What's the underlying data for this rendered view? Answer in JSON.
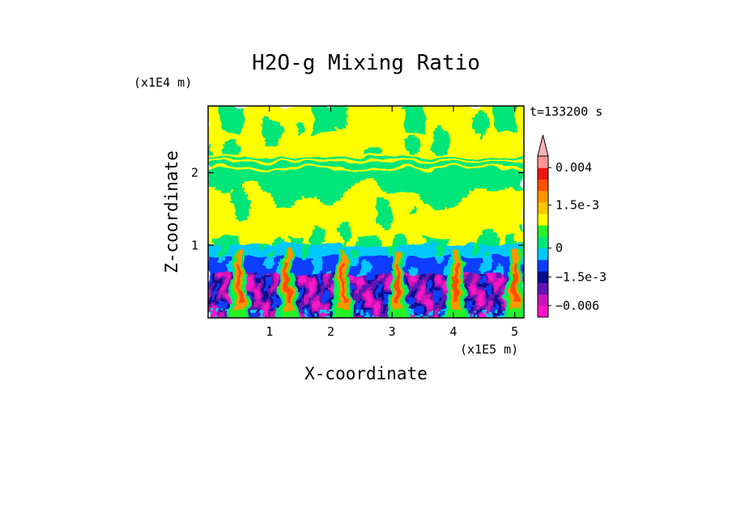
{
  "chart_data": {
    "type": "heatmap",
    "title": "H2O-g Mixing Ratio",
    "xlabel": "X-coordinate",
    "ylabel": "Z-coordinate",
    "x_unit": "(x1E5 m)",
    "y_unit": "(x1E4 m)",
    "time_label": "t=133200 s",
    "xlim": [
      0,
      5.15
    ],
    "ylim": [
      0,
      2.92
    ],
    "x_ticks": [
      1,
      2,
      3,
      4,
      5
    ],
    "x_tick_labels": [
      "1",
      "2",
      "3",
      "4",
      "5"
    ],
    "y_ticks": [
      1,
      2
    ],
    "y_tick_labels": [
      "1",
      "2"
    ],
    "colorbar": {
      "colors": [
        "#ff14c8",
        "#c814b4",
        "#6414b4",
        "#0a0a8c",
        "#0a3cff",
        "#00c8ff",
        "#00e678",
        "#28f028",
        "#ffff00",
        "#ffc800",
        "#ff9600",
        "#ff5000",
        "#f01414",
        "#ff9696",
        "#ffb4b4"
      ],
      "bounds": [
        -0.009,
        -0.006,
        -0.003,
        -0.0018,
        -0.0012,
        -0.0006,
        0,
        0.0004,
        0.0008,
        0.0012,
        0.0016,
        0.002,
        0.0028,
        0.004,
        0.005
      ],
      "tick_values": [
        0.004,
        0.0015,
        0,
        -0.0015,
        -0.006
      ],
      "tick_labels": [
        "0.004",
        "1.5e-3",
        "0",
        "−1.5e-3",
        "−0.006"
      ]
    },
    "field_summary": {
      "layers": [
        {
          "z_range": [
            2.25,
            2.92
          ],
          "level": 0.0004,
          "note": "upper yellow layer with green patches"
        },
        {
          "z_range": [
            2.0,
            2.25
          ],
          "level": 0.0,
          "note": "thin alternating green and yellow bands"
        },
        {
          "z_range": [
            1.0,
            2.0
          ],
          "level": 0.0004,
          "note": "mostly yellow with green patches"
        },
        {
          "z_range": [
            0.6,
            1.0
          ],
          "level": -0.0006,
          "note": "cyan and light-blue band"
        },
        {
          "z_range": [
            0.0,
            0.6
          ],
          "level": -0.006,
          "note": "blue and purple turbulent plumes"
        }
      ],
      "plume_centers_x": [
        0.5,
        1.3,
        2.2,
        3.1,
        4.05,
        5.0
      ],
      "plume_level": 0.0016
    }
  }
}
